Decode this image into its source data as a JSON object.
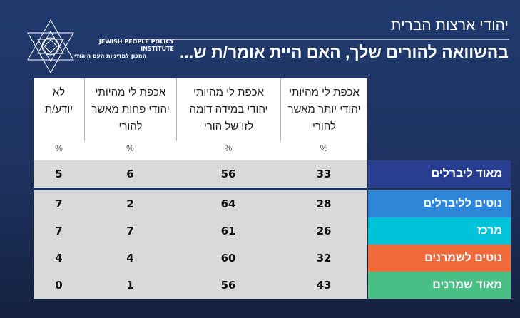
{
  "header": {
    "subtitle": "יהודי ארצות הברית",
    "title": "בהשוואה להורים שלך, האם היית אומר/ת ש...",
    "logo_en": "JEWISH PEOPLE POLICY INSTITUTE",
    "logo_he": "המכון למדיניות העם היהודי"
  },
  "columns": [
    {
      "label": "אכפת לי מהיותי יהודי יותר מאשר להורי",
      "unit": "%"
    },
    {
      "label": "אכפת לי מהיותי יהודי במידה דומה לזו של הורי",
      "unit": "%"
    },
    {
      "label": "אכפת לי מהיותי יהודי פחות מאשר להורי",
      "unit": "%"
    },
    {
      "label": "לא יודע/ת",
      "unit": "%"
    }
  ],
  "rows": [
    {
      "label": "מאוד ליברלים",
      "color": "#283f91",
      "values": [
        "33",
        "56",
        "6",
        "5"
      ]
    },
    {
      "label": "נוטים לליברלים",
      "color": "#2d86d8",
      "values": [
        "28",
        "64",
        "2",
        "7"
      ]
    },
    {
      "label": "מרכז",
      "color": "#00c3da",
      "values": [
        "26",
        "61",
        "7",
        "7"
      ]
    },
    {
      "label": "נוטים לשמרנים",
      "color": "#f06a3a",
      "values": [
        "32",
        "60",
        "4",
        "4"
      ]
    },
    {
      "label": "מאוד שמרנים",
      "color": "#48bf84",
      "values": [
        "43",
        "56",
        "1",
        "0"
      ]
    }
  ]
}
